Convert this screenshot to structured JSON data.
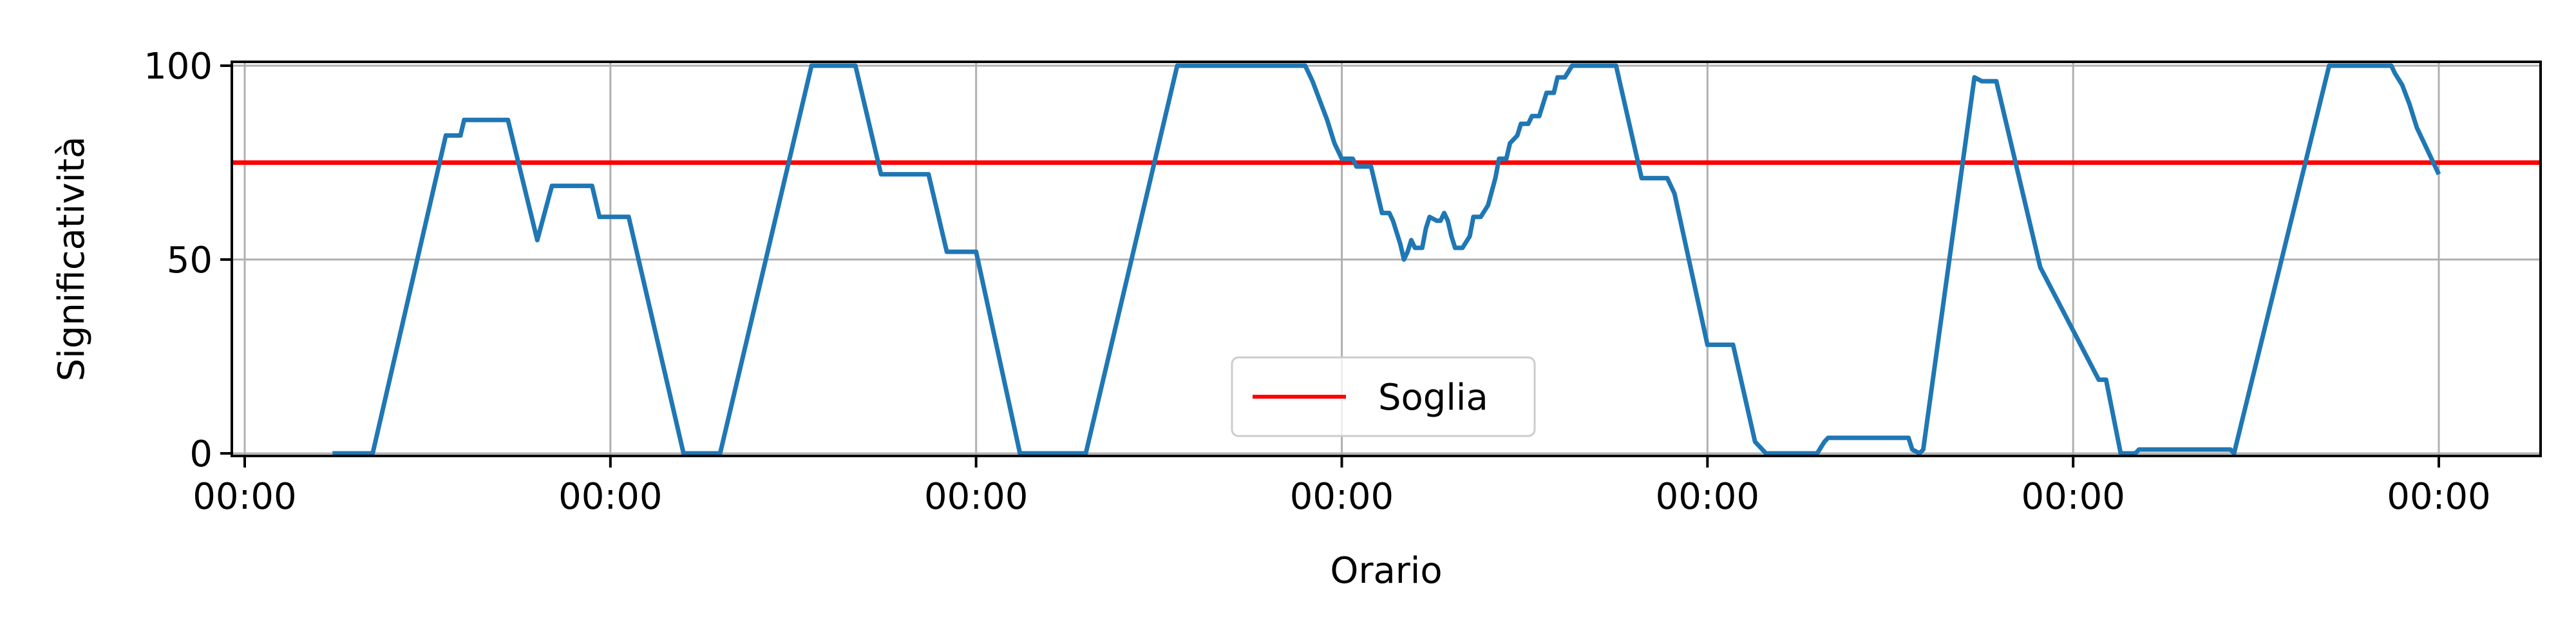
{
  "chart_data": {
    "type": "line",
    "xlabel": "Orario",
    "ylabel": "Significatività",
    "ylim": [
      0,
      100
    ],
    "xlim": [
      -0.04,
      6.3
    ],
    "x_ticks": [
      {
        "x": 0,
        "label": "00:00"
      },
      {
        "x": 1,
        "label": "00:00"
      },
      {
        "x": 2,
        "label": "00:00"
      },
      {
        "x": 3,
        "label": "00:00"
      },
      {
        "x": 4,
        "label": "00:00"
      },
      {
        "x": 5,
        "label": "00:00"
      },
      {
        "x": 6,
        "label": "00:00"
      }
    ],
    "y_ticks": [
      0,
      50,
      100
    ],
    "grid": true,
    "legend": {
      "placement": "lower-center"
    },
    "colors": {
      "series": "#1f77b4",
      "threshold": "#ff0000",
      "grid": "#b0b0b0"
    },
    "threshold": {
      "name": "Soglia",
      "value": 75
    },
    "series": [
      {
        "points": [
          [
            0.24,
            0
          ],
          [
            0.35,
            0
          ],
          [
            0.55,
            82
          ],
          [
            0.59,
            82
          ],
          [
            0.6,
            86
          ],
          [
            0.72,
            86
          ],
          [
            0.8,
            55
          ],
          [
            0.84,
            69
          ],
          [
            0.95,
            69
          ],
          [
            0.97,
            61
          ],
          [
            1.05,
            61
          ],
          [
            1.2,
            0
          ],
          [
            1.3,
            0
          ],
          [
            1.55,
            100
          ],
          [
            1.67,
            100
          ],
          [
            1.74,
            72
          ],
          [
            1.87,
            72
          ],
          [
            1.92,
            52
          ],
          [
            2.0,
            52
          ],
          [
            2.12,
            0
          ],
          [
            2.3,
            0
          ],
          [
            2.55,
            100
          ],
          [
            2.9,
            100
          ],
          [
            2.92,
            96
          ],
          [
            2.94,
            91
          ],
          [
            2.96,
            86
          ],
          [
            2.98,
            80
          ],
          [
            3.0,
            76
          ],
          [
            3.03,
            76
          ],
          [
            3.04,
            74
          ],
          [
            3.08,
            74
          ],
          [
            3.1,
            66
          ],
          [
            3.11,
            62
          ],
          [
            3.13,
            62
          ],
          [
            3.14,
            60
          ],
          [
            3.16,
            54
          ],
          [
            3.17,
            50
          ],
          [
            3.18,
            52
          ],
          [
            3.19,
            55
          ],
          [
            3.2,
            53
          ],
          [
            3.22,
            53
          ],
          [
            3.23,
            58
          ],
          [
            3.24,
            61
          ],
          [
            3.26,
            60
          ],
          [
            3.27,
            60
          ],
          [
            3.28,
            62
          ],
          [
            3.29,
            60
          ],
          [
            3.3,
            56
          ],
          [
            3.31,
            53
          ],
          [
            3.33,
            53
          ],
          [
            3.35,
            56
          ],
          [
            3.36,
            61
          ],
          [
            3.38,
            61
          ],
          [
            3.4,
            64
          ],
          [
            3.42,
            71
          ],
          [
            3.43,
            76
          ],
          [
            3.45,
            76
          ],
          [
            3.46,
            80
          ],
          [
            3.48,
            82
          ],
          [
            3.49,
            85
          ],
          [
            3.51,
            85
          ],
          [
            3.52,
            87
          ],
          [
            3.54,
            87
          ],
          [
            3.56,
            93
          ],
          [
            3.58,
            93
          ],
          [
            3.59,
            97
          ],
          [
            3.61,
            97
          ],
          [
            3.63,
            100
          ],
          [
            3.75,
            100
          ],
          [
            3.82,
            71
          ],
          [
            3.89,
            71
          ],
          [
            3.91,
            67
          ],
          [
            4.0,
            28
          ],
          [
            4.07,
            28
          ],
          [
            4.13,
            3
          ],
          [
            4.16,
            0
          ],
          [
            4.3,
            0
          ],
          [
            4.32,
            3
          ],
          [
            4.33,
            4
          ],
          [
            4.55,
            4
          ],
          [
            4.56,
            1
          ],
          [
            4.58,
            0
          ],
          [
            4.59,
            1
          ],
          [
            4.73,
            97
          ],
          [
            4.75,
            96
          ],
          [
            4.79,
            96
          ],
          [
            4.91,
            48
          ],
          [
            5.07,
            19
          ],
          [
            5.09,
            19
          ],
          [
            5.13,
            0
          ],
          [
            5.17,
            0
          ],
          [
            5.18,
            1
          ],
          [
            5.43,
            1
          ],
          [
            5.44,
            0
          ],
          [
            5.7,
            100
          ],
          [
            5.87,
            100
          ],
          [
            5.88,
            98
          ],
          [
            5.9,
            95
          ],
          [
            5.92,
            90
          ],
          [
            5.94,
            84
          ],
          [
            5.96,
            80
          ],
          [
            5.99,
            74
          ],
          [
            6.0,
            72
          ]
        ]
      }
    ]
  }
}
